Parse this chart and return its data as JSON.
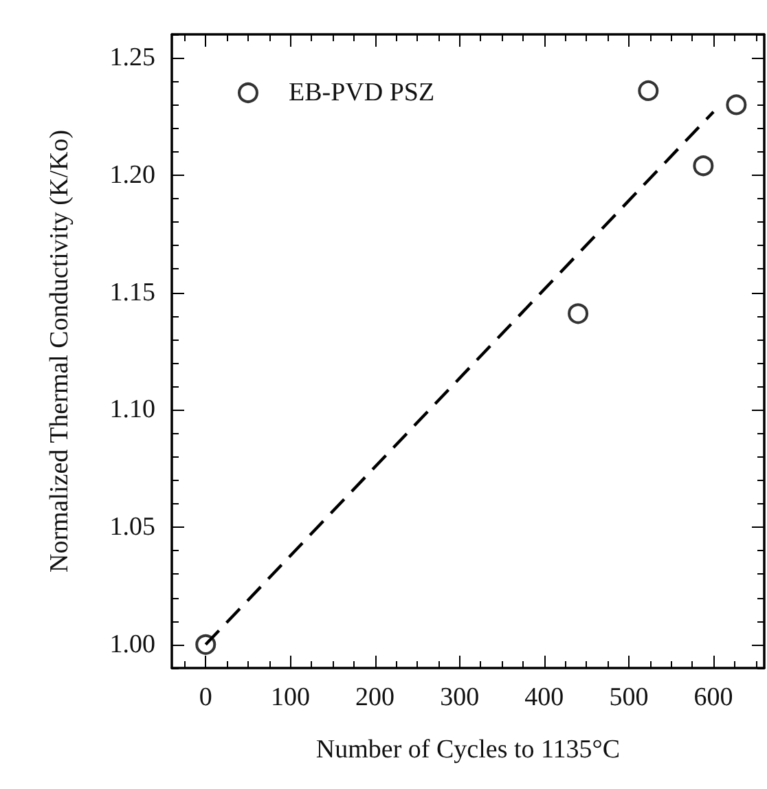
{
  "chart_data": {
    "type": "scatter",
    "xlabel": "Number of Cycles to 1135°C",
    "ylabel": "Normalized Thermal Conductivity (K/Ko)",
    "xlim": [
      -40,
      660
    ],
    "ylim": [
      0.99,
      1.26
    ],
    "xticks": [
      {
        "value": -25,
        "label": null
      },
      0,
      {
        "value": 25,
        "label": null
      },
      {
        "value": 50,
        "label": null
      },
      {
        "value": 75,
        "label": null
      },
      100,
      {
        "value": 125,
        "label": null
      },
      {
        "value": 150,
        "label": null
      },
      {
        "value": 175,
        "label": null
      },
      200,
      {
        "value": 225,
        "label": null
      },
      {
        "value": 250,
        "label": null
      },
      {
        "value": 275,
        "label": null
      },
      300,
      {
        "value": 325,
        "label": null
      },
      {
        "value": 350,
        "label": null
      },
      {
        "value": 375,
        "label": null
      },
      400,
      {
        "value": 425,
        "label": null
      },
      {
        "value": 450,
        "label": null
      },
      {
        "value": 475,
        "label": null
      },
      500,
      {
        "value": 525,
        "label": null
      },
      {
        "value": 550,
        "label": null
      },
      {
        "value": 575,
        "label": null
      },
      600,
      {
        "value": 625,
        "label": null
      },
      {
        "value": 650,
        "label": null
      }
    ],
    "yticks": [
      {
        "value": 0.99,
        "label": null
      },
      {
        "value": 1,
        "label": "1.00"
      },
      {
        "value": 1.01,
        "label": null
      },
      {
        "value": 1.02,
        "label": null
      },
      {
        "value": 1.03,
        "label": null
      },
      {
        "value": 1.04,
        "label": null
      },
      {
        "value": 1.05,
        "label": "1.05"
      },
      {
        "value": 1.06,
        "label": null
      },
      {
        "value": 1.07,
        "label": null
      },
      {
        "value": 1.08,
        "label": null
      },
      {
        "value": 1.09,
        "label": null
      },
      {
        "value": 1.1,
        "label": "1.10"
      },
      {
        "value": 1.11,
        "label": null
      },
      {
        "value": 1.12,
        "label": null
      },
      {
        "value": 1.13,
        "label": null
      },
      {
        "value": 1.14,
        "label": null
      },
      {
        "value": 1.15,
        "label": "1.15"
      },
      {
        "value": 1.16,
        "label": null
      },
      {
        "value": 1.17,
        "label": null
      },
      {
        "value": 1.18,
        "label": null
      },
      {
        "value": 1.19,
        "label": null
      },
      {
        "value": 1.2,
        "label": "1.20"
      },
      {
        "value": 1.21,
        "label": null
      },
      {
        "value": 1.22,
        "label": null
      },
      {
        "value": 1.23,
        "label": null
      },
      {
        "value": 1.24,
        "label": null
      },
      {
        "value": 1.25,
        "label": "1.25"
      },
      {
        "value": 1.26,
        "label": null
      }
    ],
    "grid": false,
    "legend": "top left",
    "marker": "circle",
    "series": [
      {
        "name": "EB-PVD PSZ",
        "color": "#000000",
        "x": [
          0,
          440,
          523,
          588,
          627
        ],
        "values": [
          1.0,
          1.141,
          1.236,
          1.204,
          1.23
        ]
      },
      {
        "type": "line",
        "line_style": "dashed",
        "marker": "none",
        "color": "#000000",
        "x": [
          0,
          600
        ],
        "values": [
          1.0,
          1.227
        ]
      }
    ]
  }
}
